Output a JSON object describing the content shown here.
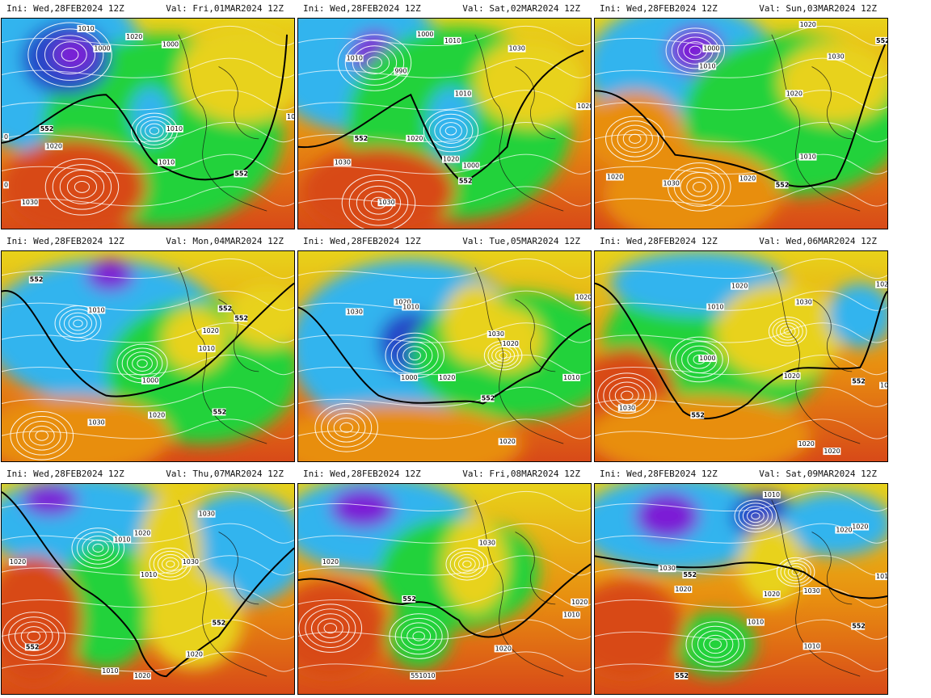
{
  "panels": [
    {
      "ini": "Ini: Wed,28FEB2024 12Z",
      "val": "Val: Fri,01MAR2024 12Z",
      "labels": [
        "1010",
        "1020",
        "1000",
        "1000",
        "1010",
        "1010",
        "1020",
        "552",
        "1020",
        "1030",
        "552",
        "0",
        "0"
      ]
    },
    {
      "ini": "Ini: Wed,28FEB2024 12Z",
      "val": "Val: Sat,02MAR2024 12Z",
      "labels": [
        "1000",
        "1010",
        "1010",
        "990",
        "1030",
        "1010",
        "1020",
        "552",
        "1020",
        "1030",
        "1000",
        "552",
        "1030",
        "1020"
      ]
    },
    {
      "ini": "Ini: Wed,28FEB2024 12Z",
      "val": "Val: Sun,03MAR2024 12Z",
      "labels": [
        "1020",
        "552",
        "1000",
        "1010",
        "1030",
        "1020",
        "1010",
        "1020",
        "1030",
        "1020",
        "552"
      ]
    },
    {
      "ini": "Ini: Wed,28FEB2024 12Z",
      "val": "Val: Mon,04MAR2024 12Z",
      "labels": [
        "552",
        "1010",
        "552",
        "552",
        "1020",
        "1010",
        "1000",
        "1030",
        "1020",
        "552"
      ]
    },
    {
      "ini": "Ini: Wed,28FEB2024 12Z",
      "val": "Val: Tue,05MAR2024 12Z",
      "labels": [
        "1020",
        "1010",
        "1030",
        "1030",
        "1020",
        "1000",
        "1020",
        "552",
        "1010",
        "1020",
        "1020"
      ]
    },
    {
      "ini": "Ini: Wed,28FEB2024 12Z",
      "val": "Val: Wed,06MAR2024 12Z",
      "labels": [
        "1020",
        "102",
        "1030",
        "1010",
        "1000",
        "1020",
        "552",
        "1010",
        "1030",
        "552",
        "1020",
        "1020"
      ]
    },
    {
      "ini": "Ini: Wed,28FEB2024 12Z",
      "val": "Val: Thu,07MAR2024 12Z",
      "labels": [
        "1020",
        "1030",
        "1010",
        "1020",
        "1010",
        "1030",
        "552",
        "1010",
        "1020",
        "1020",
        "552"
      ]
    },
    {
      "ini": "Ini: Wed,28FEB2024 12Z",
      "val": "Val: Fri,08MAR2024 12Z",
      "labels": [
        "1020",
        "1030",
        "552",
        "1020",
        "1010",
        "1020",
        "551010"
      ]
    },
    {
      "ini": "Ini: Wed,28FEB2024 12Z",
      "val": "Val: Sat,09MAR2024 12Z",
      "labels": [
        "1010",
        "1020",
        "1030",
        "552",
        "1020",
        "1010",
        "1030",
        "1010",
        "1020",
        "1010",
        "552",
        "552",
        "1020"
      ]
    }
  ],
  "colors": {
    "deep_low": "#7b1fd6",
    "low": "#2846c8",
    "cool": "#33b4ee",
    "green": "#22d23a",
    "yellow": "#e8d21a",
    "orange": "#e88e10",
    "red": "#d84a18",
    "contour": "#ffffff",
    "line552": "#000000"
  }
}
